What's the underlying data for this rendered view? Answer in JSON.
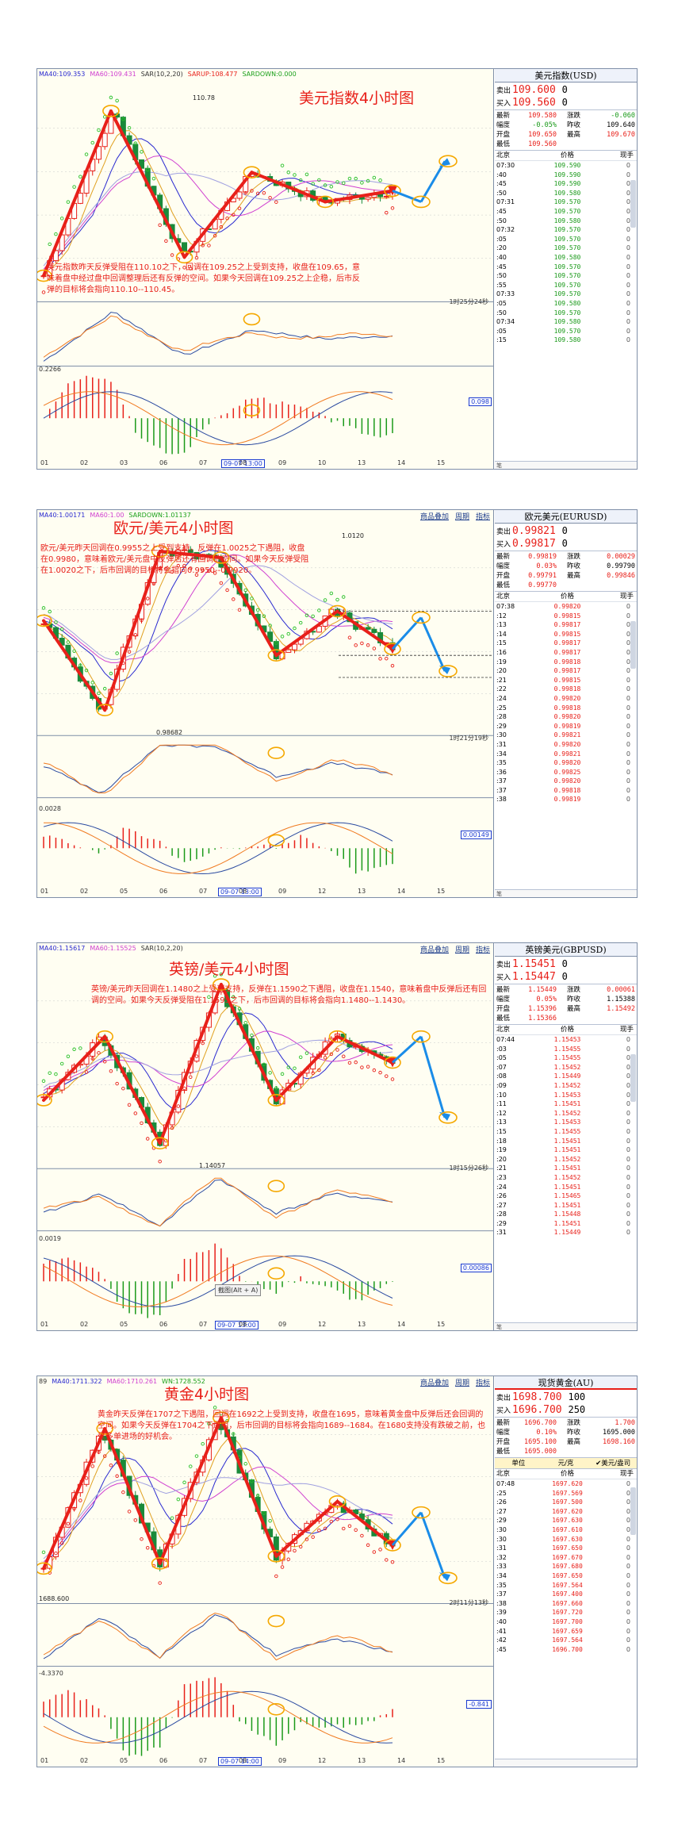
{
  "panels": [
    {
      "id": "usd",
      "indicators": [
        {
          "text": "MA40:109.353",
          "color": "#2a2ad0"
        },
        {
          "text": "MA60:109.431",
          "color": "#d040d0"
        },
        {
          "text": "SAR(10,2,20)",
          "color": "#333333"
        },
        {
          "text": "SARUP:108.477",
          "color": "#e8201a"
        },
        {
          "text": "SARDOWN:0.000",
          "color": "#1aa01a"
        }
      ],
      "title": "美元指数4小时图",
      "note": "美元指数昨天反弹受阻在110.10之下，回调在109.25之上受到支持，收盘在109.65，意味着盘中经过盘中回调整理后还有反弹的空间。如果今天回调在109.25之上企稳，后市反弹的目标将会指向110.10--110.45。",
      "tabs": [],
      "countdown": "1时25分24秒",
      "macd_label": "0.2266",
      "macd_box": "0.098",
      "high_label": "110.78",
      "low_label": "",
      "date_box": "09-07 13:00",
      "xaxis": [
        "01",
        "02",
        "03",
        "06",
        "07",
        "08",
        "09",
        "10",
        "13",
        "14",
        "15"
      ],
      "tip": "",
      "quote": {
        "title": "美元指数(USD)",
        "sell_label": "卖出",
        "sell_price": "109.600",
        "sell_vol": "0",
        "buy_label": "买入",
        "buy_price": "109.560",
        "buy_vol": "0",
        "stats": [
          {
            "l1": "最新",
            "v1": "109.580",
            "v1c": "red",
            "l2": "涨跌",
            "v2": "-0.060",
            "v2c": "green"
          },
          {
            "l1": "幅度",
            "v1": "-0.05%",
            "v1c": "green",
            "l2": "昨收",
            "v2": "109.640",
            "v2c": "black"
          },
          {
            "l1": "开盘",
            "v1": "109.650",
            "v1c": "red",
            "l2": "最高",
            "v2": "109.670",
            "v2c": "red"
          },
          {
            "l1": "最低",
            "v1": "109.560",
            "v1c": "red",
            "l2": "",
            "v2": "",
            "v2c": "black"
          }
        ],
        "unit": null,
        "head": {
          "time": "北京",
          "price": "价格",
          "vol": "现手"
        },
        "ticks": [
          {
            "t": "07:30",
            "p": "109.590",
            "v": "0"
          },
          {
            "t": ":40",
            "p": "109.590",
            "v": "0"
          },
          {
            "t": ":45",
            "p": "109.590",
            "v": "0"
          },
          {
            "t": ":50",
            "p": "109.580",
            "v": "0"
          },
          {
            "t": "07:31",
            "p": "109.570",
            "v": "0"
          },
          {
            "t": ":45",
            "p": "109.570",
            "v": "0"
          },
          {
            "t": ":50",
            "p": "109.580",
            "v": "0"
          },
          {
            "t": "07:32",
            "p": "109.570",
            "v": "0"
          },
          {
            "t": ":05",
            "p": "109.570",
            "v": "0"
          },
          {
            "t": ":20",
            "p": "109.570",
            "v": "0"
          },
          {
            "t": ":40",
            "p": "109.580",
            "v": "0"
          },
          {
            "t": ":45",
            "p": "109.570",
            "v": "0"
          },
          {
            "t": ":50",
            "p": "109.570",
            "v": "0"
          },
          {
            "t": ":55",
            "p": "109.570",
            "v": "0"
          },
          {
            "t": "07:33",
            "p": "109.570",
            "v": "0"
          },
          {
            "t": ":05",
            "p": "109.580",
            "v": "0"
          },
          {
            "t": ":50",
            "p": "109.570",
            "v": "0"
          },
          {
            "t": "07:34",
            "p": "109.580",
            "v": "0"
          },
          {
            "t": ":05",
            "p": "109.570",
            "v": "0"
          },
          {
            "t": ":15",
            "p": "109.580",
            "v": "0"
          }
        ],
        "tick_color": "#1a9a1a",
        "foot": "笔"
      }
    },
    {
      "id": "eur",
      "indicators": [
        {
          "text": "MA40:1.00171",
          "color": "#2a2ad0"
        },
        {
          "text": "MA60:1.00",
          "color": "#d040d0"
        },
        {
          "text": "SARDOWN:1.01137",
          "color": "#1aa01a"
        }
      ],
      "title": "欧元/美元4小时图",
      "note": "欧元/美元昨天回调在0.9955之上受到支持，反弹在1.0025之下遇阻，收盘在0.9980，意味着欧元/美元盘中反弹后还有回调的空间。如果今天反弹受阻在1.0020之下，后市回调的目标将会指向0.9950--0.9920。",
      "tabs": [
        "商品叠加",
        "周期",
        "指标"
      ],
      "countdown": "1时21分19秒",
      "macd_label": "0.0028",
      "macd_box": "0.00149",
      "high_label": "1.0120",
      "low_label": "0.98682",
      "date_box": "09-07 13:00",
      "xaxis": [
        "01",
        "02",
        "05",
        "06",
        "07",
        "08",
        "09",
        "12",
        "13",
        "14",
        "15"
      ],
      "tip": "",
      "quote": {
        "title": "欧元美元(EURUSD)",
        "sell_label": "卖出",
        "sell_price": "0.99821",
        "sell_vol": "0",
        "buy_label": "买入",
        "buy_price": "0.99817",
        "buy_vol": "0",
        "stats": [
          {
            "l1": "最新",
            "v1": "0.99819",
            "v1c": "red",
            "l2": "涨跌",
            "v2": "0.00029",
            "v2c": "red"
          },
          {
            "l1": "幅度",
            "v1": "0.03%",
            "v1c": "red",
            "l2": "昨收",
            "v2": "0.99790",
            "v2c": "black"
          },
          {
            "l1": "开盘",
            "v1": "0.99791",
            "v1c": "red",
            "l2": "最高",
            "v2": "0.99846",
            "v2c": "red"
          },
          {
            "l1": "最低",
            "v1": "0.99770",
            "v1c": "red",
            "l2": "",
            "v2": "",
            "v2c": "black"
          }
        ],
        "unit": null,
        "head": {
          "time": "北京",
          "price": "价格",
          "vol": "现手"
        },
        "ticks": [
          {
            "t": "07:38",
            "p": "0.99820",
            "v": "0"
          },
          {
            "t": ":12",
            "p": "0.99815",
            "v": "0"
          },
          {
            "t": ":13",
            "p": "0.99817",
            "v": "0"
          },
          {
            "t": ":14",
            "p": "0.99815",
            "v": "0"
          },
          {
            "t": ":15",
            "p": "0.99817",
            "v": "0"
          },
          {
            "t": ":16",
            "p": "0.99817",
            "v": "0"
          },
          {
            "t": ":19",
            "p": "0.99818",
            "v": "0"
          },
          {
            "t": ":20",
            "p": "0.99817",
            "v": "0"
          },
          {
            "t": ":21",
            "p": "0.99815",
            "v": "0"
          },
          {
            "t": ":22",
            "p": "0.99818",
            "v": "0"
          },
          {
            "t": ":24",
            "p": "0.99820",
            "v": "0"
          },
          {
            "t": ":25",
            "p": "0.99818",
            "v": "0"
          },
          {
            "t": ":28",
            "p": "0.99820",
            "v": "0"
          },
          {
            "t": ":29",
            "p": "0.99819",
            "v": "0"
          },
          {
            "t": ":30",
            "p": "0.99821",
            "v": "0"
          },
          {
            "t": ":31",
            "p": "0.99820",
            "v": "0"
          },
          {
            "t": ":34",
            "p": "0.99821",
            "v": "0"
          },
          {
            "t": ":35",
            "p": "0.99820",
            "v": "0"
          },
          {
            "t": ":36",
            "p": "0.99825",
            "v": "0"
          },
          {
            "t": ":37",
            "p": "0.99820",
            "v": "0"
          },
          {
            "t": ":37",
            "p": "0.99818",
            "v": "0"
          },
          {
            "t": ":38",
            "p": "0.99819",
            "v": "0"
          }
        ],
        "tick_color": "#e8201a",
        "foot": "笔"
      }
    },
    {
      "id": "gbp",
      "indicators": [
        {
          "text": "MA40:1.15617",
          "color": "#2a2ad0"
        },
        {
          "text": "MA60:1.15525",
          "color": "#d040d0"
        },
        {
          "text": "SAR(10,2,20)",
          "color": "#333333"
        }
      ],
      "title": "英镑/美元4小时图",
      "note": "英镑/美元昨天回调在1.1480之上受到支持，反弹在1.1590之下遇阻，收盘在1.1540，意味着盘中反弹后还有回调的空间。如果今天反弹受阻在1.1595之下，后市回调的目标将会指向1.1480--1.1430。",
      "tabs": [
        "商品叠加",
        "周期",
        "指标"
      ],
      "countdown": "1时15分26秒",
      "macd_label": "0.0019",
      "macd_box": "0.00086",
      "high_label": "",
      "low_label": "1.14057",
      "date_box": "09-07 13:00",
      "xaxis": [
        "01",
        "02",
        "05",
        "06",
        "07",
        "08",
        "09",
        "12",
        "13",
        "14",
        "15"
      ],
      "tip": "截图(Alt + A)",
      "quote": {
        "title": "英镑美元(GBPUSD)",
        "sell_label": "卖出",
        "sell_price": "1.15451",
        "sell_vol": "0",
        "buy_label": "买入",
        "buy_price": "1.15447",
        "buy_vol": "0",
        "stats": [
          {
            "l1": "最新",
            "v1": "1.15449",
            "v1c": "red",
            "l2": "涨跌",
            "v2": "0.00061",
            "v2c": "red"
          },
          {
            "l1": "幅度",
            "v1": "0.05%",
            "v1c": "red",
            "l2": "昨收",
            "v2": "1.15388",
            "v2c": "black"
          },
          {
            "l1": "开盘",
            "v1": "1.15396",
            "v1c": "red",
            "l2": "最高",
            "v2": "1.15492",
            "v2c": "red"
          },
          {
            "l1": "最低",
            "v1": "1.15366",
            "v1c": "red",
            "l2": "",
            "v2": "",
            "v2c": "black"
          }
        ],
        "unit": null,
        "head": {
          "time": "北京",
          "price": "价格",
          "vol": "现手"
        },
        "ticks": [
          {
            "t": "07:44",
            "p": "1.15453",
            "v": "0"
          },
          {
            "t": ":03",
            "p": "1.15455",
            "v": "0"
          },
          {
            "t": ":05",
            "p": "1.15455",
            "v": "0"
          },
          {
            "t": ":07",
            "p": "1.15452",
            "v": "0"
          },
          {
            "t": ":08",
            "p": "1.15449",
            "v": "0"
          },
          {
            "t": ":09",
            "p": "1.15452",
            "v": "0"
          },
          {
            "t": ":10",
            "p": "1.15453",
            "v": "0"
          },
          {
            "t": ":11",
            "p": "1.15451",
            "v": "0"
          },
          {
            "t": ":12",
            "p": "1.15452",
            "v": "0"
          },
          {
            "t": ":13",
            "p": "1.15453",
            "v": "0"
          },
          {
            "t": ":15",
            "p": "1.15455",
            "v": "0"
          },
          {
            "t": ":18",
            "p": "1.15451",
            "v": "0"
          },
          {
            "t": ":19",
            "p": "1.15451",
            "v": "0"
          },
          {
            "t": ":20",
            "p": "1.15452",
            "v": "0"
          },
          {
            "t": ":21",
            "p": "1.15451",
            "v": "0"
          },
          {
            "t": ":23",
            "p": "1.15452",
            "v": "0"
          },
          {
            "t": ":24",
            "p": "1.15451",
            "v": "0"
          },
          {
            "t": ":26",
            "p": "1.15465",
            "v": "0"
          },
          {
            "t": ":27",
            "p": "1.15451",
            "v": "0"
          },
          {
            "t": ":28",
            "p": "1.15448",
            "v": "0"
          },
          {
            "t": ":29",
            "p": "1.15451",
            "v": "0"
          },
          {
            "t": ":31",
            "p": "1.15449",
            "v": "0"
          }
        ],
        "tick_color": "#e8201a",
        "foot": "笔"
      }
    },
    {
      "id": "gold",
      "indicators": [
        {
          "text": "89",
          "color": "#333333"
        },
        {
          "text": "MA40:1711.322",
          "color": "#2a2ad0"
        },
        {
          "text": "MA60:1710.261",
          "color": "#d040d0"
        },
        {
          "text": "WN:1728.552",
          "color": "#1aa01a"
        }
      ],
      "title": "黄金4小时图",
      "note": "黄金昨天反弹在1707之下遇阻，回调在1692之上受到支持，收盘在1695，意味着黄金盘中反弹后还会回调的空间。如果今天反弹在1704之下遇阻，后市回调的目标将会指向1689--1684。在1680支持没有跌破之前，也是多单进场的好机会。",
      "tabs": [
        "商品叠加",
        "周期",
        "指标"
      ],
      "countdown": "2时11分13秒",
      "macd_label": "-4.3370",
      "macd_box": "-0.841",
      "high_label": "",
      "low_label": "1688.600",
      "date_box": "09-07 14:00",
      "xaxis": [
        "01",
        "02",
        "05",
        "06",
        "07",
        "08",
        "09",
        "12",
        "13",
        "14",
        "15"
      ],
      "tip": "",
      "quote": {
        "title": "现货黄金(AU)",
        "sell_label": "卖出",
        "sell_price": "1698.700",
        "sell_vol": "100",
        "buy_label": "买入",
        "buy_price": "1696.700",
        "buy_vol": "250",
        "stats": [
          {
            "l1": "最新",
            "v1": "1696.700",
            "v1c": "red",
            "l2": "涨跌",
            "v2": "1.700",
            "v2c": "red"
          },
          {
            "l1": "幅度",
            "v1": "0.10%",
            "v1c": "red",
            "l2": "昨收",
            "v2": "1695.000",
            "v2c": "black"
          },
          {
            "l1": "开盘",
            "v1": "1695.100",
            "v1c": "red",
            "l2": "最高",
            "v2": "1698.160",
            "v2c": "red"
          },
          {
            "l1": "最低",
            "v1": "1695.000",
            "v1c": "red",
            "l2": "",
            "v2": "",
            "v2c": "black"
          }
        ],
        "unit": {
          "left": "单位",
          "mid": "元/克",
          "right": "✔美元/盎司"
        },
        "head": {
          "time": "北京",
          "price": "价格",
          "vol": "现手"
        },
        "ticks": [
          {
            "t": "07:48",
            "p": "1697.620",
            "v": "0"
          },
          {
            "t": ":25",
            "p": "1697.569",
            "v": "0"
          },
          {
            "t": ":26",
            "p": "1697.500",
            "v": "0"
          },
          {
            "t": ":27",
            "p": "1697.620",
            "v": "0"
          },
          {
            "t": ":29",
            "p": "1697.630",
            "v": "0"
          },
          {
            "t": ":30",
            "p": "1697.610",
            "v": "0"
          },
          {
            "t": ":30",
            "p": "1697.630",
            "v": "0"
          },
          {
            "t": ":31",
            "p": "1697.650",
            "v": "0"
          },
          {
            "t": ":32",
            "p": "1697.670",
            "v": "0"
          },
          {
            "t": ":33",
            "p": "1697.680",
            "v": "0"
          },
          {
            "t": ":34",
            "p": "1697.650",
            "v": "0"
          },
          {
            "t": ":35",
            "p": "1697.564",
            "v": "0"
          },
          {
            "t": ":37",
            "p": "1697.400",
            "v": "0"
          },
          {
            "t": ":38",
            "p": "1697.660",
            "v": "0"
          },
          {
            "t": ":39",
            "p": "1697.720",
            "v": "0"
          },
          {
            "t": ":40",
            "p": "1697.700",
            "v": "0"
          },
          {
            "t": ":41",
            "p": "1697.659",
            "v": "0"
          },
          {
            "t": ":42",
            "p": "1697.564",
            "v": "0"
          },
          {
            "t": ":45",
            "p": "1696.700",
            "v": "0"
          }
        ],
        "tick_color": "#e8201a",
        "foot": ""
      }
    }
  ],
  "chart_data": [
    {
      "type": "candlestick",
      "title": "美元指数4小时图",
      "price_labels": {
        "high": 110.78
      },
      "trend_points": [
        108.55,
        110.78,
        108.8,
        109.95,
        109.55,
        109.7
      ],
      "projection_points": [
        109.55,
        110.1
      ],
      "xticks": [
        "01",
        "02",
        "03",
        "06",
        "07",
        "08",
        "09",
        "10",
        "13",
        "14",
        "15"
      ]
    },
    {
      "type": "candlestick",
      "title": "欧元/美元4小时图",
      "price_labels": {
        "high": 1.012,
        "low": 0.98682
      },
      "trend_points": [
        1.001,
        0.98682,
        1.012,
        1.011,
        0.9955,
        1.0025,
        0.9965
      ],
      "projection_points": [
        1.0015,
        0.993
      ],
      "xticks": [
        "01",
        "02",
        "05",
        "06",
        "07",
        "08",
        "09",
        "12",
        "13",
        "14",
        "15"
      ]
    },
    {
      "type": "candlestick",
      "title": "英镑/美元4小时图",
      "price_labels": {
        "low": 1.14057
      },
      "trend_points": [
        1.148,
        1.159,
        1.14057,
        1.168,
        1.148,
        1.159,
        1.1545
      ],
      "projection_points": [
        1.159,
        1.145
      ],
      "xticks": [
        "01",
        "02",
        "05",
        "06",
        "07",
        "08",
        "09",
        "12",
        "13",
        "14",
        "15"
      ]
    },
    {
      "type": "candlestick",
      "title": "黄金4小时图",
      "price_labels": {
        "low": 1688.6
      },
      "trend_points": [
        1688.6,
        1727,
        1690,
        1730,
        1692,
        1707,
        1695
      ],
      "projection_points": [
        1704,
        1686
      ],
      "xticks": [
        "01",
        "02",
        "05",
        "06",
        "07",
        "08",
        "09",
        "12",
        "13",
        "14",
        "15"
      ]
    }
  ]
}
